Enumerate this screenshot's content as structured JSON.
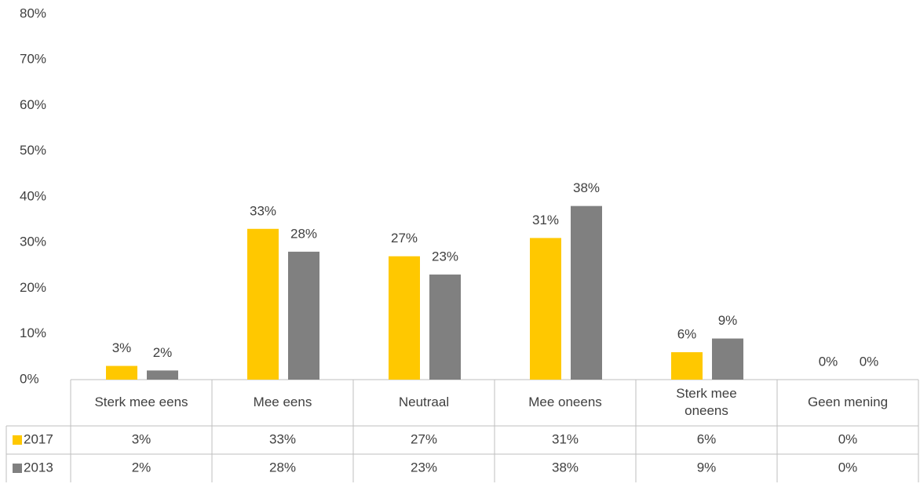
{
  "chart_data": {
    "type": "bar",
    "categories": [
      "Sterk mee eens",
      "Mee eens",
      "Neutraal",
      "Mee oneens",
      [
        "Sterk mee",
        "oneens"
      ],
      "Geen mening"
    ],
    "series": [
      {
        "name": "2017",
        "color": "#ffc800",
        "values": [
          3,
          33,
          27,
          31,
          6,
          0
        ],
        "value_labels": [
          "3%",
          "33%",
          "27%",
          "31%",
          "6%",
          "0%"
        ]
      },
      {
        "name": "2013",
        "color": "#808080",
        "values": [
          2,
          28,
          23,
          38,
          9,
          0
        ],
        "value_labels": [
          "2%",
          "28%",
          "23%",
          "38%",
          "9%",
          "0%"
        ]
      }
    ],
    "ylim": [
      0,
      80
    ],
    "yticks": [
      {
        "value": 0,
        "label": "0%"
      },
      {
        "value": 10,
        "label": "10%"
      },
      {
        "value": 20,
        "label": "20%"
      },
      {
        "value": 30,
        "label": "30%"
      },
      {
        "value": 40,
        "label": "40%"
      },
      {
        "value": 50,
        "label": "50%"
      },
      {
        "value": 60,
        "label": "60%"
      },
      {
        "value": 70,
        "label": "70%"
      },
      {
        "value": 80,
        "label": "80%"
      }
    ],
    "grid": false
  }
}
